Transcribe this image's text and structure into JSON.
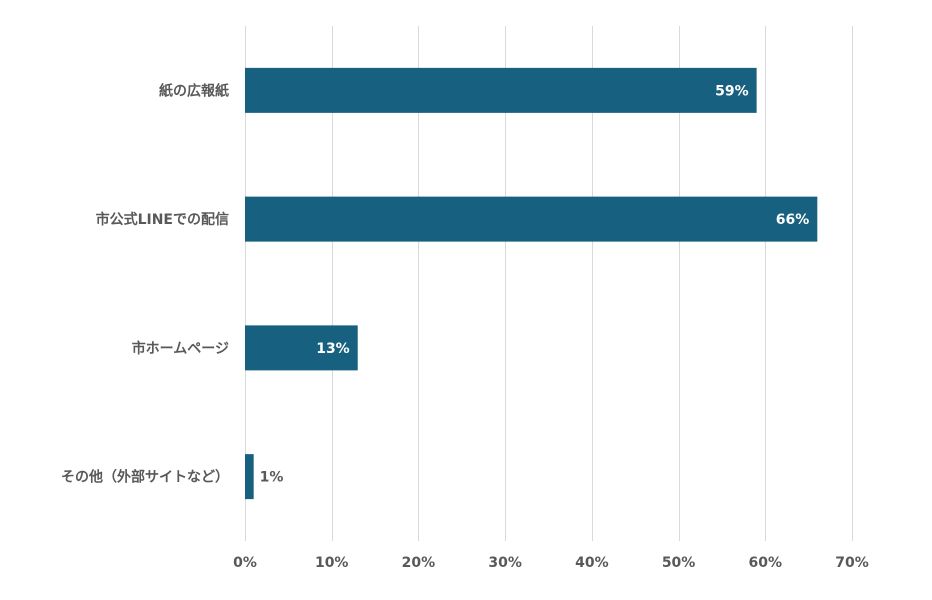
{
  "chart_data": {
    "type": "bar",
    "orientation": "horizontal",
    "categories": [
      "紙の広報紙",
      "市公式LINEでの配信",
      "市ホームページ",
      "その他（外部サイトなど）"
    ],
    "values": [
      59,
      66,
      13,
      1
    ],
    "value_labels": [
      "59%",
      "66%",
      "13%",
      "1%"
    ],
    "xlim": [
      0,
      70
    ],
    "x_ticks": [
      0,
      10,
      20,
      30,
      40,
      50,
      60,
      70
    ],
    "x_tick_labels": [
      "0%",
      "10%",
      "20%",
      "30%",
      "40%",
      "50%",
      "60%",
      "70%"
    ],
    "grid": true,
    "legend": "none",
    "colors": {
      "bar": "#17607f",
      "grid": "#d9d9d9",
      "text": "#595959",
      "label_inside": "#ffffff",
      "label_outside": "#595959"
    }
  }
}
